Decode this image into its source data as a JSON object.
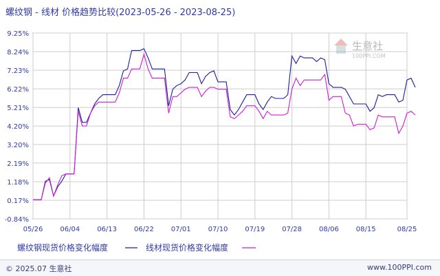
{
  "title": "螺纹钢 - 线材 价格趋势比较(2023-05-26 - 2023-08-25)",
  "footer": {
    "copyright": "© 2025.07 生意社",
    "url": "www.100PPI.com"
  },
  "watermark": {
    "name": "生意社",
    "url": "100PPI.COM"
  },
  "colors": {
    "series1": "#1a1aa6",
    "series2": "#d21ad2",
    "grid": "#cccccc",
    "axis": "#555555"
  },
  "chart_data": {
    "type": "line",
    "title": "螺纹钢 - 线材 价格趋势比较(2023-05-26 - 2023-08-25)",
    "y_ticks": [
      "9.25%",
      "8.24%",
      "7.23%",
      "6.22%",
      "5.21%",
      "4.20%",
      "3.20%",
      "2.19%",
      "1.18%",
      "0.17%",
      "-0.84%"
    ],
    "ylim": [
      -0.84,
      9.25
    ],
    "x_ticks": [
      "05/26",
      "06/04",
      "06/13",
      "06/22",
      "07/01",
      "07/10",
      "07/19",
      "07/28",
      "08/06",
      "08/15",
      "08/25"
    ],
    "x_tick_days": [
      0,
      9,
      18,
      27,
      36,
      45,
      54,
      63,
      72,
      81,
      91
    ],
    "x_range_days": [
      0,
      91
    ],
    "grid": true,
    "legend_position": "bottom",
    "series": [
      {
        "name": "螺纹钢现货价格变化幅度",
        "color": "#1a1aa6",
        "points": [
          [
            0,
            0.2
          ],
          [
            1,
            0.2
          ],
          [
            2,
            0.2
          ],
          [
            3,
            1.2
          ],
          [
            4,
            1.3
          ],
          [
            5,
            0.4
          ],
          [
            6,
            0.9
          ],
          [
            7,
            1.2
          ],
          [
            8,
            1.6
          ],
          [
            9,
            1.6
          ],
          [
            10,
            1.6
          ],
          [
            11,
            5.2
          ],
          [
            12,
            4.4
          ],
          [
            13,
            4.4
          ],
          [
            14,
            4.9
          ],
          [
            15,
            5.4
          ],
          [
            16,
            5.7
          ],
          [
            17,
            5.9
          ],
          [
            18,
            5.9
          ],
          [
            19,
            5.9
          ],
          [
            20,
            5.9
          ],
          [
            21,
            6.4
          ],
          [
            22,
            7.2
          ],
          [
            23,
            7.3
          ],
          [
            24,
            8.3
          ],
          [
            25,
            8.3
          ],
          [
            26,
            8.3
          ],
          [
            27,
            8.4
          ],
          [
            28,
            7.9
          ],
          [
            29,
            7.3
          ],
          [
            30,
            7.3
          ],
          [
            31,
            7.3
          ],
          [
            32,
            7.3
          ],
          [
            33,
            5.3
          ],
          [
            34,
            6.2
          ],
          [
            35,
            6.4
          ],
          [
            36,
            6.5
          ],
          [
            37,
            6.7
          ],
          [
            38,
            7.1
          ],
          [
            39,
            7.1
          ],
          [
            40,
            7.1
          ],
          [
            41,
            6.5
          ],
          [
            42,
            6.9
          ],
          [
            43,
            7.1
          ],
          [
            44,
            7.2
          ],
          [
            45,
            6.6
          ],
          [
            46,
            6.6
          ],
          [
            47,
            6.6
          ],
          [
            48,
            5.1
          ],
          [
            49,
            4.8
          ],
          [
            50,
            5.1
          ],
          [
            51,
            5.5
          ],
          [
            52,
            5.9
          ],
          [
            53,
            5.9
          ],
          [
            54,
            5.9
          ],
          [
            55,
            5.4
          ],
          [
            56,
            5.1
          ],
          [
            57,
            5.5
          ],
          [
            58,
            5.8
          ],
          [
            59,
            5.7
          ],
          [
            60,
            5.7
          ],
          [
            61,
            5.7
          ],
          [
            62,
            5.9
          ],
          [
            63,
            8.0
          ],
          [
            64,
            7.6
          ],
          [
            65,
            8.0
          ],
          [
            66,
            7.9
          ],
          [
            67,
            7.9
          ],
          [
            68,
            7.9
          ],
          [
            69,
            7.7
          ],
          [
            70,
            7.9
          ],
          [
            71,
            7.8
          ],
          [
            72,
            6.5
          ],
          [
            73,
            6.3
          ],
          [
            74,
            6.3
          ],
          [
            75,
            6.3
          ],
          [
            76,
            6.2
          ],
          [
            77,
            5.8
          ],
          [
            78,
            5.4
          ],
          [
            79,
            5.4
          ],
          [
            80,
            5.4
          ],
          [
            81,
            5.4
          ],
          [
            82,
            5.0
          ],
          [
            83,
            5.2
          ],
          [
            84,
            5.9
          ],
          [
            85,
            5.8
          ],
          [
            86,
            5.9
          ],
          [
            87,
            5.9
          ],
          [
            88,
            5.9
          ],
          [
            89,
            5.5
          ],
          [
            90,
            5.6
          ],
          [
            91,
            6.7
          ],
          [
            92,
            6.8
          ],
          [
            93,
            6.3
          ]
        ]
      },
      {
        "name": "线材现货价格变化幅度",
        "color": "#d21ad2",
        "points": [
          [
            0,
            0.2
          ],
          [
            1,
            0.2
          ],
          [
            2,
            0.2
          ],
          [
            3,
            1.1
          ],
          [
            4,
            1.4
          ],
          [
            5,
            0.4
          ],
          [
            6,
            1.0
          ],
          [
            7,
            1.5
          ],
          [
            8,
            1.6
          ],
          [
            9,
            1.6
          ],
          [
            10,
            1.6
          ],
          [
            11,
            5.0
          ],
          [
            12,
            4.2
          ],
          [
            13,
            4.2
          ],
          [
            14,
            4.9
          ],
          [
            15,
            5.3
          ],
          [
            16,
            5.5
          ],
          [
            17,
            5.5
          ],
          [
            18,
            5.5
          ],
          [
            19,
            5.5
          ],
          [
            20,
            5.5
          ],
          [
            21,
            6.0
          ],
          [
            22,
            6.8
          ],
          [
            23,
            6.8
          ],
          [
            24,
            7.3
          ],
          [
            25,
            7.3
          ],
          [
            26,
            7.3
          ],
          [
            27,
            8.1
          ],
          [
            28,
            7.3
          ],
          [
            29,
            6.8
          ],
          [
            30,
            6.8
          ],
          [
            31,
            6.8
          ],
          [
            32,
            6.8
          ],
          [
            33,
            4.9
          ],
          [
            34,
            5.8
          ],
          [
            35,
            5.8
          ],
          [
            36,
            6.0
          ],
          [
            37,
            6.2
          ],
          [
            38,
            6.3
          ],
          [
            39,
            6.3
          ],
          [
            40,
            6.3
          ],
          [
            41,
            5.8
          ],
          [
            42,
            6.1
          ],
          [
            43,
            6.3
          ],
          [
            44,
            6.3
          ],
          [
            45,
            6.2
          ],
          [
            46,
            6.2
          ],
          [
            47,
            6.2
          ],
          [
            48,
            4.7
          ],
          [
            49,
            4.6
          ],
          [
            50,
            4.8
          ],
          [
            51,
            5.0
          ],
          [
            52,
            5.3
          ],
          [
            53,
            5.3
          ],
          [
            54,
            5.3
          ],
          [
            55,
            5.0
          ],
          [
            56,
            4.6
          ],
          [
            57,
            5.0
          ],
          [
            58,
            4.8
          ],
          [
            59,
            4.8
          ],
          [
            60,
            4.8
          ],
          [
            61,
            4.8
          ],
          [
            62,
            4.9
          ],
          [
            63,
            6.2
          ],
          [
            64,
            6.8
          ],
          [
            65,
            6.4
          ],
          [
            66,
            6.7
          ],
          [
            67,
            6.7
          ],
          [
            68,
            6.7
          ],
          [
            69,
            6.7
          ],
          [
            70,
            6.7
          ],
          [
            71,
            7.0
          ],
          [
            72,
            5.6
          ],
          [
            73,
            5.8
          ],
          [
            74,
            5.8
          ],
          [
            75,
            5.8
          ],
          [
            76,
            4.9
          ],
          [
            77,
            4.8
          ],
          [
            78,
            4.2
          ],
          [
            79,
            4.3
          ],
          [
            80,
            4.3
          ],
          [
            81,
            4.3
          ],
          [
            82,
            4.0
          ],
          [
            83,
            4.1
          ],
          [
            84,
            4.8
          ],
          [
            85,
            4.7
          ],
          [
            86,
            4.7
          ],
          [
            87,
            4.7
          ],
          [
            88,
            4.7
          ],
          [
            89,
            3.8
          ],
          [
            90,
            4.2
          ],
          [
            91,
            4.9
          ],
          [
            92,
            5.0
          ],
          [
            93,
            4.8
          ]
        ]
      }
    ]
  }
}
